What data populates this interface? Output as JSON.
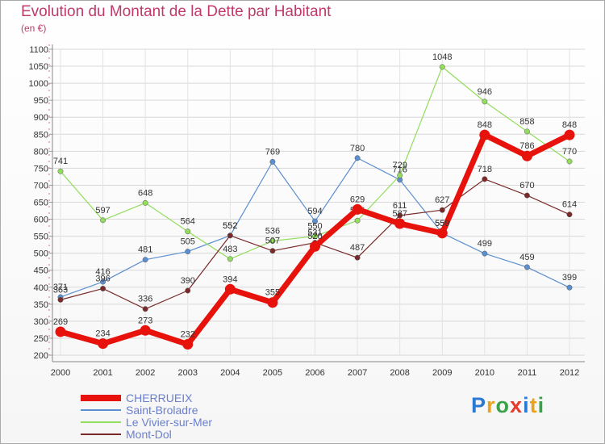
{
  "header": {
    "title": "Evolution du Montant de la Dette par Habitant",
    "unit": "(en €)"
  },
  "logo": {
    "text": "Proxiti",
    "colors": [
      "#2a7ad3",
      "#e8a320",
      "#3aa34a",
      "#e63b2e",
      "#2a7ad3",
      "#e8a320",
      "#3aa34a"
    ]
  },
  "chart_data": {
    "type": "line",
    "title": "Evolution du Montant de la Dette par Habitant",
    "ylabel": "(en €)",
    "xlabel": "",
    "x": [
      "2000",
      "2001",
      "2002",
      "2003",
      "2004",
      "2005",
      "2006",
      "2007",
      "2008",
      "2009",
      "2010",
      "2011",
      "2012"
    ],
    "ylim": [
      200,
      1100
    ],
    "yticks": [
      200,
      250,
      300,
      350,
      400,
      450,
      500,
      550,
      600,
      650,
      700,
      750,
      800,
      850,
      900,
      950,
      1000,
      1050,
      1100
    ],
    "grid": true,
    "legend_position": "bottom-left",
    "series": [
      {
        "name": "CHERRUEIX",
        "color": "#e8120c",
        "width": 7,
        "values": [
          269,
          234,
          273,
          232,
          394,
          355,
          520,
          629,
          587,
          559,
          848,
          786,
          848
        ]
      },
      {
        "name": "Saint-Broladre",
        "color": "#5b8fd0",
        "width": 1.2,
        "values": [
          371,
          416,
          481,
          505,
          552,
          769,
          594,
          780,
          716,
          559,
          499,
          459,
          399
        ]
      },
      {
        "name": "Le Vivier-sur-Mer",
        "color": "#92dd5c",
        "width": 1.2,
        "values": [
          741,
          597,
          648,
          564,
          483,
          536,
          550,
          596,
          729,
          1048,
          946,
          858,
          770
        ]
      },
      {
        "name": "Mont-Dol",
        "color": "#7a2a2a",
        "width": 1.2,
        "values": [
          363,
          396,
          336,
          390,
          552,
          507,
          531,
          487,
          611,
          627,
          718,
          670,
          614
        ]
      }
    ]
  }
}
